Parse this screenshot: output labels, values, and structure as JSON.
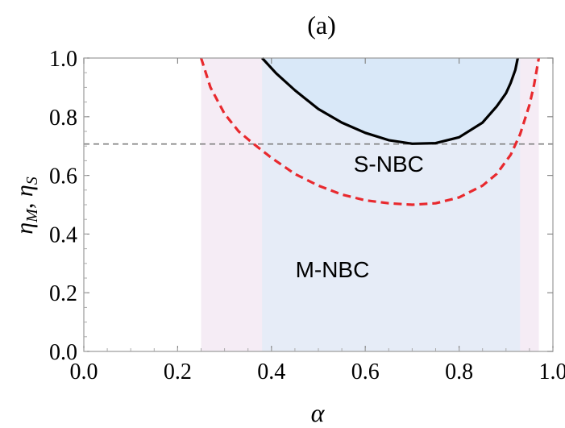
{
  "chart_data": {
    "type": "line",
    "title": "(a)",
    "xlabel": "α",
    "ylabel_main": "η",
    "ylabel_sub1": "M",
    "ylabel_sep": ", ",
    "ylabel_sub2": "S",
    "xlim": [
      0.0,
      1.0
    ],
    "ylim": [
      0.0,
      1.0
    ],
    "xticks": [
      0.0,
      0.2,
      0.4,
      0.6,
      0.8,
      1.0
    ],
    "yticks": [
      0.0,
      0.2,
      0.4,
      0.6,
      0.8,
      1.0
    ],
    "xtick_labels": [
      "0.0",
      "0.2",
      "0.4",
      "0.6",
      "0.8",
      "1.0"
    ],
    "ytick_labels": [
      "0.0",
      "0.2",
      "0.4",
      "0.6",
      "0.8",
      "1.0"
    ],
    "reference_line": {
      "y": 0.707,
      "style": "dashed",
      "color": "#7f7f7f"
    },
    "regions": [
      {
        "label": "M-NBC",
        "x_range": [
          0.25,
          0.97
        ],
        "color": "#f2e6f2",
        "label_pos": [
          0.53,
          0.28
        ]
      },
      {
        "label": "S-NBC",
        "x_range": [
          0.38,
          0.93
        ],
        "color": "#e0ecf8",
        "label_pos": [
          0.65,
          0.64
        ]
      }
    ],
    "series": [
      {
        "style": "dashed",
        "color": "#e8292e",
        "x": [
          0.25,
          0.27,
          0.3,
          0.33,
          0.36,
          0.4,
          0.45,
          0.5,
          0.55,
          0.6,
          0.65,
          0.7,
          0.75,
          0.8,
          0.85,
          0.88,
          0.91,
          0.93,
          0.95,
          0.96,
          0.97
        ],
        "y": [
          1.0,
          0.9,
          0.81,
          0.75,
          0.71,
          0.66,
          0.605,
          0.565,
          0.535,
          0.515,
          0.505,
          0.5,
          0.505,
          0.525,
          0.565,
          0.605,
          0.67,
          0.74,
          0.84,
          0.91,
          1.0
        ]
      },
      {
        "style": "solid",
        "color": "#000000",
        "x": [
          0.38,
          0.41,
          0.45,
          0.5,
          0.55,
          0.6,
          0.65,
          0.7,
          0.75,
          0.8,
          0.85,
          0.88,
          0.9,
          0.91,
          0.92,
          0.925
        ],
        "y": [
          1.0,
          0.948,
          0.89,
          0.826,
          0.78,
          0.745,
          0.72,
          0.708,
          0.71,
          0.73,
          0.78,
          0.835,
          0.88,
          0.915,
          0.96,
          1.0
        ]
      }
    ]
  }
}
